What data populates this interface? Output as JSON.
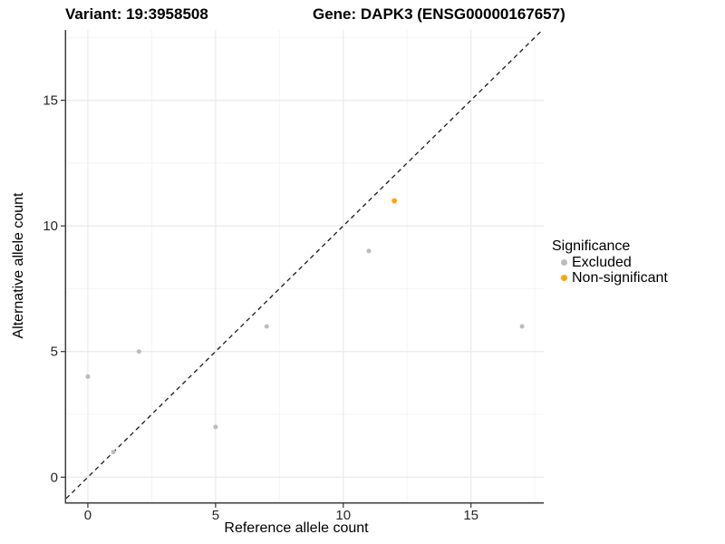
{
  "chart_data": {
    "type": "scatter",
    "title_left": "Variant: 19:3958508",
    "title_right": "Gene: DAPK3 (ENSG00000167657)",
    "xlabel": "Reference allele count",
    "ylabel": "Alternative allele count",
    "xlim": [
      -0.85,
      17.85
    ],
    "ylim": [
      -1.0,
      17.8
    ],
    "x_ticks": [
      0,
      5,
      10,
      15
    ],
    "y_ticks": [
      0,
      5,
      10,
      15
    ],
    "x_minor_ticks": [
      2.5,
      7.5,
      12.5,
      17.5
    ],
    "y_minor_ticks": [
      2.5,
      7.5,
      12.5,
      17.5
    ],
    "grid": true,
    "legend_position": "right",
    "identity_line": {
      "style": "dashed",
      "slope": 1,
      "intercept": 0,
      "color": "#1A1A1A"
    },
    "series": [
      {
        "name": "Excluded",
        "color": "#BCBCBC",
        "point_radius": 2.5,
        "points": [
          [
            0,
            4
          ],
          [
            1,
            1
          ],
          [
            2,
            5
          ],
          [
            5,
            2
          ],
          [
            7,
            6
          ],
          [
            11,
            9
          ],
          [
            17,
            6
          ]
        ]
      },
      {
        "name": "Non-significant",
        "color": "#FFA500",
        "point_radius": 2.9,
        "points": [
          [
            12,
            11
          ]
        ]
      }
    ]
  },
  "legend": {
    "title": "Significance",
    "items": [
      {
        "label": "Excluded",
        "color": "#BCBCBC"
      },
      {
        "label": "Non-significant",
        "color": "#FFA500"
      }
    ]
  },
  "theme": {
    "background": "#FFFFFF",
    "grid_major": "#EAEAEA",
    "grid_minor": "#F4F4F4",
    "axis_line": "#3C3C3C",
    "tick_mark": "#333333",
    "tick_label": "#262626"
  }
}
